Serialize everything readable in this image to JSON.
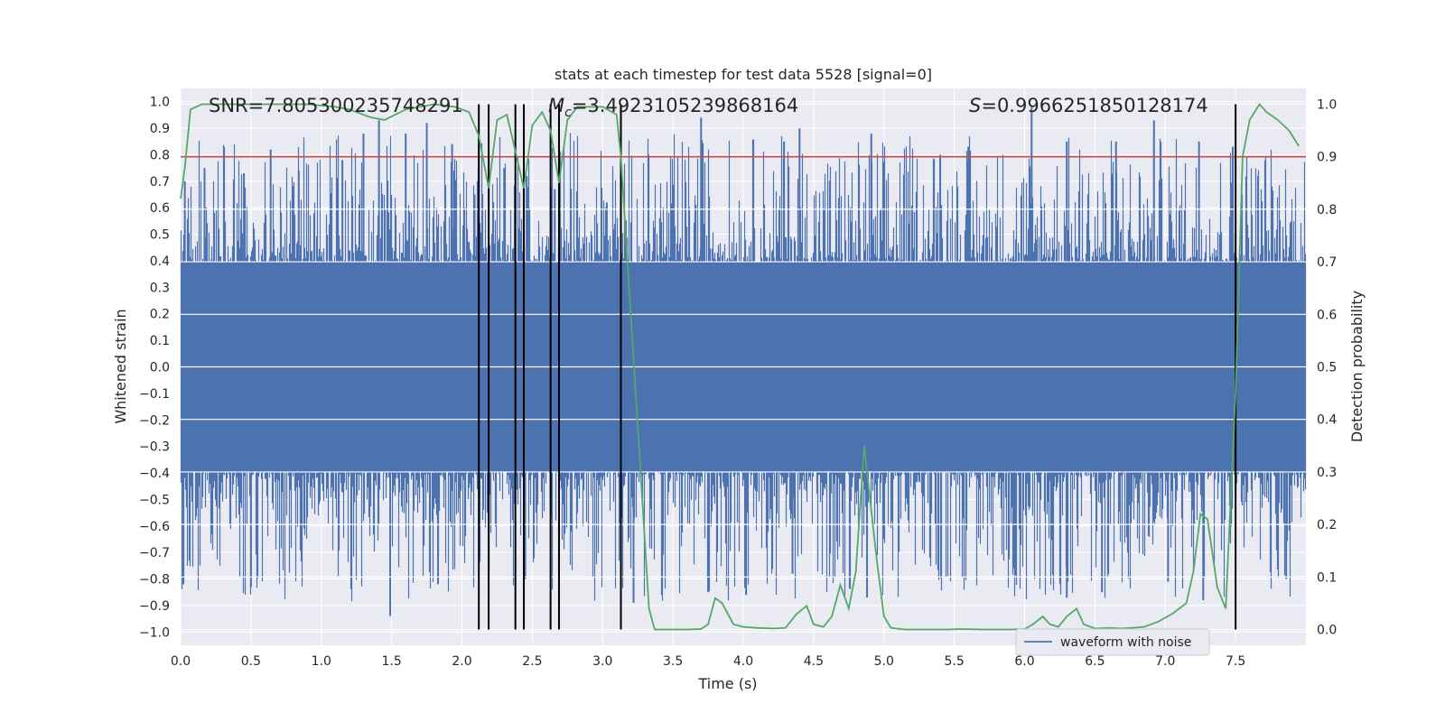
{
  "chart_data": {
    "type": "line",
    "title": "stats at each timestep for test data 5528 [signal=0]",
    "xlabel": "Time (s)",
    "ylabel": "Whitened strain",
    "y2label": "Detection probability",
    "xlim": [
      0.0,
      8.0
    ],
    "ylim": [
      -1.05,
      1.05
    ],
    "y2lim": [
      -0.03,
      1.03
    ],
    "xticks": [
      "0.0",
      "0.5",
      "1.0",
      "1.5",
      "2.0",
      "2.5",
      "3.0",
      "3.5",
      "4.0",
      "4.5",
      "5.0",
      "5.5",
      "6.0",
      "6.5",
      "7.0",
      "7.5"
    ],
    "yticks": [
      "1.0",
      "0.9",
      "0.8",
      "0.7",
      "0.6",
      "0.5",
      "0.4",
      "0.3",
      "0.2",
      "0.1",
      "0.0",
      "−0.1",
      "−0.2",
      "−0.3",
      "−0.4",
      "−0.5",
      "−0.6",
      "−0.7",
      "−0.8",
      "−0.9",
      "−1.0"
    ],
    "y2ticks": [
      "1.0",
      "0.9",
      "0.8",
      "0.7",
      "0.6",
      "0.5",
      "0.4",
      "0.3",
      "0.2",
      "0.1",
      "0.0"
    ],
    "annotations": {
      "snr": "SNR=7.805300235748291",
      "mc_symbol": "M",
      "mc_sub": "c",
      "mc_value": "=3.4923105239868164",
      "s_symbol": "S",
      "s_value": "=0.9966251850128174"
    },
    "threshold": {
      "y2": 0.9,
      "color": "#c44e52"
    },
    "trigger_lines_x": [
      2.12,
      2.19,
      2.38,
      2.44,
      2.63,
      2.69,
      3.13,
      7.5
    ],
    "series": [
      {
        "name": "waveform with noise",
        "color": "#4c72b0",
        "envelope": {
          "typical_abs": 0.55,
          "max_abs": 0.97
        },
        "spikes_top": [
          [
            0.03,
            0.7
          ],
          [
            0.17,
            0.75
          ],
          [
            0.45,
            0.73
          ],
          [
            0.64,
            0.82
          ],
          [
            0.84,
            0.74
          ],
          [
            1.15,
            0.78
          ],
          [
            1.3,
            0.88
          ],
          [
            1.41,
            0.93
          ],
          [
            1.6,
            0.88
          ],
          [
            1.75,
            0.92
          ],
          [
            1.93,
            0.84
          ],
          [
            2.09,
            0.65
          ],
          [
            2.3,
            0.75
          ],
          [
            2.46,
            0.72
          ],
          [
            2.66,
            0.67
          ],
          [
            3.03,
            0.62
          ],
          [
            3.7,
            0.94
          ],
          [
            4.29,
            0.85
          ],
          [
            4.4,
            0.9
          ],
          [
            4.91,
            0.88
          ],
          [
            5.4,
            0.8
          ],
          [
            5.6,
            0.83
          ],
          [
            6.05,
            0.98
          ],
          [
            6.3,
            0.85
          ],
          [
            6.65,
            0.85
          ],
          [
            6.92,
            0.93
          ],
          [
            7.24,
            0.85
          ],
          [
            7.48,
            0.83
          ]
        ],
        "spikes_bottom": [
          [
            0.02,
            -0.82
          ],
          [
            0.5,
            -0.83
          ],
          [
            1.49,
            -0.94
          ],
          [
            1.83,
            -0.82
          ],
          [
            2.45,
            -0.8
          ],
          [
            3.22,
            -0.89
          ],
          [
            3.75,
            -0.85
          ],
          [
            4.02,
            -0.86
          ],
          [
            4.35,
            -0.78
          ],
          [
            4.88,
            -0.87
          ],
          [
            5.92,
            -0.76
          ],
          [
            6.3,
            -0.87
          ],
          [
            6.55,
            -0.85
          ],
          [
            7.02,
            -0.81
          ],
          [
            7.27,
            -0.88
          ],
          [
            7.86,
            -0.8
          ]
        ]
      },
      {
        "name": "detection probability",
        "color": "#55a868",
        "axis": "y2",
        "x": [
          0.0,
          0.03,
          0.07,
          0.15,
          0.3,
          0.6,
          0.9,
          1.1,
          1.2,
          1.35,
          1.45,
          1.6,
          1.8,
          1.95,
          2.05,
          2.12,
          2.19,
          2.25,
          2.32,
          2.38,
          2.44,
          2.5,
          2.57,
          2.63,
          2.69,
          2.75,
          2.82,
          3.0,
          3.1,
          3.13,
          3.2,
          3.27,
          3.33,
          3.37,
          3.45,
          3.6,
          3.7,
          3.75,
          3.8,
          3.85,
          3.93,
          4.0,
          4.1,
          4.22,
          4.3,
          4.38,
          4.45,
          4.5,
          4.57,
          4.63,
          4.69,
          4.75,
          4.8,
          4.86,
          4.9,
          4.95,
          5.0,
          5.05,
          5.15,
          5.3,
          5.45,
          5.55,
          5.7,
          5.9,
          6.0,
          6.06,
          6.13,
          6.18,
          6.24,
          6.3,
          6.37,
          6.42,
          6.5,
          6.6,
          6.7,
          6.85,
          6.95,
          7.05,
          7.15,
          7.2,
          7.25,
          7.3,
          7.37,
          7.43,
          7.5,
          7.55,
          7.6,
          7.67,
          7.72,
          7.8,
          7.88,
          7.95
        ],
        "values": [
          0.82,
          0.88,
          0.99,
          1.0,
          1.0,
          1.0,
          1.0,
          0.995,
          0.99,
          0.975,
          0.97,
          0.99,
          1.0,
          0.995,
          0.985,
          0.94,
          0.84,
          0.97,
          0.98,
          0.91,
          0.84,
          0.96,
          0.985,
          0.95,
          0.85,
          0.97,
          0.995,
          0.995,
          0.98,
          0.9,
          0.6,
          0.3,
          0.04,
          0.0,
          0.0,
          0.0,
          0.001,
          0.01,
          0.06,
          0.05,
          0.01,
          0.005,
          0.003,
          0.002,
          0.003,
          0.03,
          0.045,
          0.01,
          0.005,
          0.025,
          0.085,
          0.04,
          0.11,
          0.35,
          0.25,
          0.13,
          0.025,
          0.003,
          0.0,
          0.0,
          0.0,
          0.001,
          0.0,
          0.0,
          0.001,
          0.01,
          0.025,
          0.01,
          0.005,
          0.025,
          0.04,
          0.01,
          0.002,
          0.003,
          0.002,
          0.005,
          0.015,
          0.03,
          0.05,
          0.11,
          0.22,
          0.21,
          0.08,
          0.04,
          0.45,
          0.9,
          0.97,
          1.0,
          0.985,
          0.97,
          0.95,
          0.92
        ]
      }
    ],
    "legend": {
      "position": "lower-right",
      "entries": [
        "waveform with noise"
      ]
    }
  }
}
